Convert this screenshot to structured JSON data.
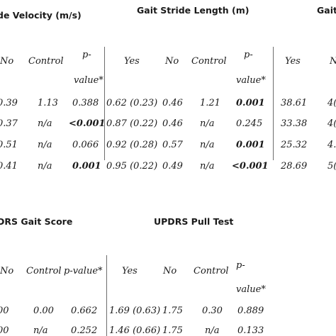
{
  "top": {
    "headers": {
      "velocity": "de Velocity (m/s)",
      "stride": "Gait Stride Length (m)",
      "cut": "Gait"
    },
    "col_labels": {
      "no1": "No",
      "control1": "Control",
      "p1a": "p-",
      "p1b": "value*",
      "yes2": "Yes",
      "no2": "No",
      "control2": "Control",
      "p2a": "p-",
      "p2b": "value*",
      "yes3": "Yes",
      "cut3": "N"
    },
    "rows": [
      {
        "no1": "0.39",
        "control1": "1.13",
        "p1": "0.388",
        "yes2": "0.62 (0.23)",
        "no2": "0.46",
        "control2": "1.21",
        "p2": "0.001",
        "yes3": "38.61",
        "cut3": "4("
      },
      {
        "no1": "0.37",
        "control1": "n/a",
        "p1": "<0.001",
        "yes2": "0.87 (0.22)",
        "no2": "0.46",
        "control2": "n/a",
        "p2": "0.245",
        "yes3": "33.38",
        "cut3": "4("
      },
      {
        "no1": "0.51",
        "control1": "n/a",
        "p1": "0.066",
        "yes2": "0.92 (0.28)",
        "no2": "0.57",
        "control2": "n/a",
        "p2": "0.001",
        "yes3": "25.32",
        "cut3": "4."
      },
      {
        "no1": "0.41",
        "control1": "n/a",
        "p1": "0.001",
        "yes2": "0.95 (0.22)",
        "no2": "0.49",
        "control2": "n/a",
        "p2": "<0.001",
        "yes3": "28.69",
        "cut3": "5("
      }
    ]
  },
  "bottom": {
    "headers": {
      "gait": "DRS Gait Score",
      "pull": "UPDRS Pull Test"
    },
    "col_labels": {
      "no1": "No",
      "control1": "Control",
      "p1": "p-value*",
      "yes2": "Yes",
      "no2": "No",
      "control2": "Control",
      "p2a": "p-",
      "p2b": "value*"
    },
    "rows": [
      {
        "no1": "00",
        "control1": "0.00",
        "p1": "0.662",
        "yes2": "1.69 (0.63)",
        "no2": "1.75",
        "control2": "0.30",
        "p2": "0.889"
      },
      {
        "no1": "00",
        "control1": "n/a",
        "p1": "0.252",
        "yes2": "1.46 (0.66)",
        "no2": "1.75",
        "control2": "n/a",
        "p2": "0.133"
      }
    ]
  }
}
